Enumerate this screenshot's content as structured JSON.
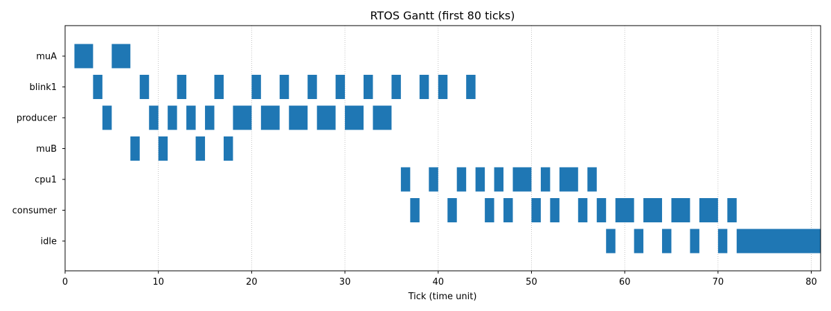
{
  "chart_data": {
    "type": "gantt",
    "title": "RTOS Gantt (first 80 ticks)",
    "xlabel": "Tick (time unit)",
    "ylabel": "",
    "xlim": [
      0,
      81
    ],
    "x_ticks": [
      0,
      10,
      20,
      30,
      40,
      50,
      60,
      70,
      80
    ],
    "grid": "x-dotted",
    "bar_color": "#1f77b4",
    "tasks": [
      {
        "name": "muA",
        "segments": [
          [
            1,
            3
          ],
          [
            5,
            7
          ]
        ]
      },
      {
        "name": "blink1",
        "segments": [
          [
            3,
            4
          ],
          [
            8,
            9
          ],
          [
            12,
            13
          ],
          [
            16,
            17
          ],
          [
            20,
            21
          ],
          [
            23,
            24
          ],
          [
            26,
            27
          ],
          [
            29,
            30
          ],
          [
            32,
            33
          ],
          [
            35,
            36
          ],
          [
            38,
            39
          ],
          [
            40,
            41
          ],
          [
            43,
            44
          ]
        ]
      },
      {
        "name": "producer",
        "segments": [
          [
            4,
            5
          ],
          [
            9,
            10
          ],
          [
            11,
            12
          ],
          [
            13,
            14
          ],
          [
            15,
            16
          ],
          [
            18,
            20
          ],
          [
            21,
            23
          ],
          [
            24,
            26
          ],
          [
            27,
            29
          ],
          [
            30,
            32
          ],
          [
            33,
            35
          ]
        ]
      },
      {
        "name": "muB",
        "segments": [
          [
            7,
            8
          ],
          [
            10,
            11
          ],
          [
            14,
            15
          ],
          [
            17,
            18
          ]
        ]
      },
      {
        "name": "cpu1",
        "segments": [
          [
            36,
            37
          ],
          [
            39,
            40
          ],
          [
            42,
            43
          ],
          [
            44,
            45
          ],
          [
            46,
            47
          ],
          [
            48,
            50
          ],
          [
            51,
            52
          ],
          [
            53,
            55
          ],
          [
            56,
            57
          ]
        ]
      },
      {
        "name": "consumer",
        "segments": [
          [
            37,
            38
          ],
          [
            41,
            42
          ],
          [
            45,
            46
          ],
          [
            47,
            48
          ],
          [
            50,
            51
          ],
          [
            52,
            53
          ],
          [
            55,
            56
          ],
          [
            57,
            58
          ],
          [
            59,
            61
          ],
          [
            62,
            64
          ],
          [
            65,
            67
          ],
          [
            68,
            70
          ],
          [
            71,
            72
          ]
        ]
      },
      {
        "name": "idle",
        "segments": [
          [
            58,
            59
          ],
          [
            61,
            62
          ],
          [
            64,
            65
          ],
          [
            67,
            68
          ],
          [
            70,
            71
          ],
          [
            72,
            81
          ]
        ]
      }
    ]
  }
}
